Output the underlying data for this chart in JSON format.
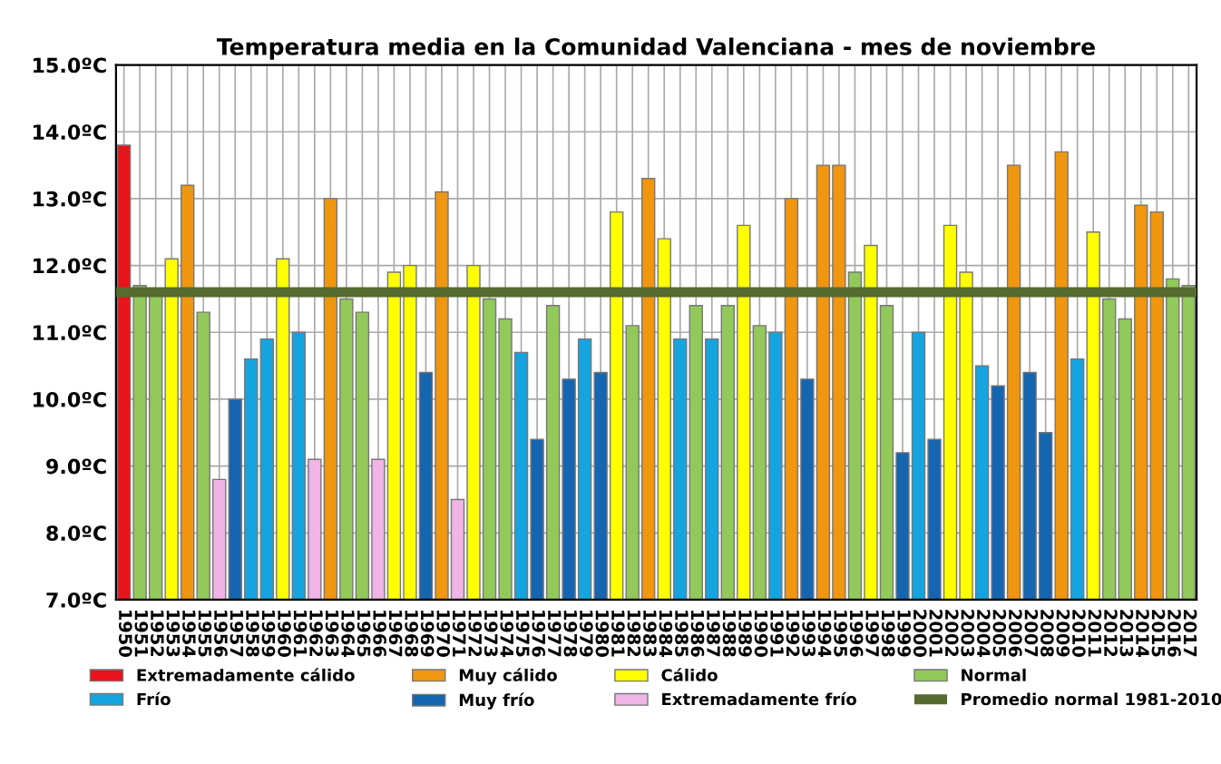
{
  "chart_data": {
    "type": "bar",
    "title": "Temperatura media en la Comunidad Valenciana - mes de noviembre",
    "categories": [
      "1950",
      "1951",
      "1952",
      "1953",
      "1954",
      "1955",
      "1956",
      "1957",
      "1958",
      "1959",
      "1960",
      "1961",
      "1962",
      "1963",
      "1964",
      "1965",
      "1966",
      "1967",
      "1968",
      "1969",
      "1970",
      "1971",
      "1972",
      "1973",
      "1974",
      "1975",
      "1976",
      "1977",
      "1978",
      "1979",
      "1980",
      "1981",
      "1982",
      "1983",
      "1984",
      "1985",
      "1986",
      "1987",
      "1988",
      "1989",
      "1990",
      "1991",
      "1992",
      "1993",
      "1994",
      "1995",
      "1996",
      "1997",
      "1998",
      "1999",
      "2000",
      "2001",
      "2002",
      "2003",
      "2004",
      "2005",
      "2006",
      "2007",
      "2008",
      "2009",
      "2010",
      "2011",
      "2012",
      "2013",
      "2014",
      "2015",
      "2016",
      "2017"
    ],
    "series": [
      {
        "name": "Extremadamente cálido",
        "color": "#e8141b",
        "values": [
          13.8,
          null,
          null,
          null,
          null,
          null,
          null,
          null,
          null,
          null,
          null,
          null,
          null,
          null,
          null,
          null,
          null,
          null,
          null,
          null,
          null,
          null,
          null,
          null,
          null,
          null,
          null,
          null,
          null,
          null,
          null,
          null,
          null,
          null,
          null,
          null,
          null,
          null,
          null,
          null,
          null,
          null,
          null,
          null,
          null,
          null,
          null,
          null,
          null,
          null,
          null,
          null,
          null,
          null,
          null,
          null,
          null,
          null,
          null,
          null,
          null,
          null,
          null,
          null,
          null,
          null,
          null,
          null
        ]
      },
      {
        "name": "Muy cálido",
        "color": "#f0960f",
        "values": [
          null,
          null,
          null,
          null,
          13.2,
          null,
          null,
          null,
          null,
          null,
          null,
          null,
          null,
          13.0,
          null,
          null,
          null,
          null,
          null,
          null,
          13.1,
          null,
          null,
          null,
          null,
          null,
          null,
          null,
          null,
          null,
          null,
          null,
          null,
          13.3,
          null,
          null,
          null,
          null,
          null,
          null,
          null,
          null,
          13.0,
          null,
          13.5,
          13.5,
          null,
          null,
          null,
          null,
          null,
          null,
          null,
          null,
          null,
          null,
          13.5,
          null,
          null,
          13.7,
          null,
          null,
          null,
          null,
          12.9,
          12.8,
          null,
          null
        ]
      },
      {
        "name": "Cálido",
        "color": "#ffff00",
        "values": [
          null,
          null,
          null,
          12.1,
          null,
          null,
          null,
          null,
          null,
          null,
          12.1,
          null,
          null,
          null,
          null,
          null,
          null,
          11.9,
          12.0,
          null,
          null,
          null,
          12.0,
          null,
          null,
          null,
          null,
          null,
          null,
          null,
          null,
          12.8,
          null,
          null,
          12.4,
          null,
          null,
          null,
          null,
          12.6,
          null,
          null,
          null,
          null,
          null,
          null,
          null,
          12.3,
          null,
          null,
          null,
          null,
          12.6,
          11.9,
          null,
          null,
          null,
          null,
          null,
          null,
          null,
          12.5,
          null,
          null,
          null,
          null,
          null,
          null
        ]
      },
      {
        "name": "Normal",
        "color": "#92c95a",
        "values": [
          null,
          11.7,
          11.6,
          null,
          null,
          11.3,
          null,
          null,
          null,
          null,
          null,
          null,
          null,
          null,
          11.5,
          11.3,
          null,
          null,
          null,
          null,
          null,
          null,
          null,
          11.5,
          11.2,
          null,
          null,
          11.4,
          null,
          null,
          null,
          null,
          11.1,
          null,
          null,
          null,
          11.4,
          null,
          11.4,
          null,
          11.1,
          null,
          null,
          null,
          null,
          null,
          11.9,
          null,
          11.4,
          null,
          null,
          null,
          null,
          null,
          null,
          null,
          null,
          null,
          null,
          null,
          null,
          null,
          11.5,
          11.2,
          null,
          null,
          11.8,
          11.7
        ]
      },
      {
        "name": "Frío",
        "color": "#14a5e0",
        "values": [
          null,
          null,
          null,
          null,
          null,
          null,
          null,
          null,
          10.6,
          10.9,
          null,
          11.0,
          null,
          null,
          null,
          null,
          null,
          null,
          null,
          null,
          null,
          null,
          null,
          null,
          null,
          10.7,
          null,
          null,
          null,
          10.9,
          null,
          null,
          null,
          null,
          null,
          10.9,
          null,
          10.9,
          null,
          null,
          null,
          11.0,
          null,
          null,
          null,
          null,
          null,
          null,
          null,
          null,
          11.0,
          null,
          null,
          null,
          10.5,
          null,
          null,
          null,
          null,
          null,
          10.6,
          null,
          null,
          null,
          null,
          null,
          null,
          null
        ]
      },
      {
        "name": "Muy frío",
        "color": "#1565b0",
        "values": [
          null,
          null,
          null,
          null,
          null,
          null,
          null,
          10.0,
          null,
          null,
          null,
          null,
          null,
          null,
          null,
          null,
          null,
          null,
          null,
          10.4,
          null,
          null,
          null,
          null,
          null,
          null,
          9.4,
          null,
          10.3,
          null,
          10.4,
          null,
          null,
          null,
          null,
          null,
          null,
          null,
          null,
          null,
          null,
          null,
          null,
          10.3,
          null,
          null,
          null,
          null,
          null,
          9.2,
          null,
          9.4,
          null,
          null,
          null,
          10.2,
          null,
          10.4,
          9.5,
          null,
          null,
          null,
          null,
          null,
          null,
          null,
          null,
          null
        ]
      },
      {
        "name": "Extremadamente frío",
        "color": "#f0b4e6",
        "values": [
          null,
          null,
          null,
          null,
          null,
          null,
          8.8,
          null,
          null,
          null,
          null,
          null,
          9.1,
          null,
          null,
          null,
          9.1,
          null,
          null,
          null,
          null,
          8.5,
          null,
          null,
          null,
          null,
          null,
          null,
          null,
          null,
          null,
          null,
          null,
          null,
          null,
          null,
          null,
          null,
          null,
          null,
          null,
          null,
          null,
          null,
          null,
          null,
          null,
          null,
          null,
          null,
          null,
          null,
          null,
          null,
          null,
          null,
          null,
          null,
          null,
          null,
          null,
          null,
          null,
          null,
          null,
          null,
          null,
          null
        ]
      }
    ],
    "ref_lines": [
      {
        "axis": "y",
        "value": 11.6,
        "label": "Promedio normal 1981-2010",
        "color": "#556b2f"
      }
    ],
    "ylim": [
      7,
      15
    ],
    "yticks": [
      {
        "value": 7,
        "label": "7.0ºC"
      },
      {
        "value": 8,
        "label": "8.0ºC"
      },
      {
        "value": 9,
        "label": "9.0ºC"
      },
      {
        "value": 10,
        "label": "10.0ºC"
      },
      {
        "value": 11,
        "label": "11.0ºC"
      },
      {
        "value": 12,
        "label": "12.0ºC"
      },
      {
        "value": 13,
        "label": "13.0ºC"
      },
      {
        "value": 14,
        "label": "14.0ºC"
      },
      {
        "value": 15,
        "label": "15.0ºC"
      }
    ],
    "grid": true,
    "legend": "bottom"
  }
}
